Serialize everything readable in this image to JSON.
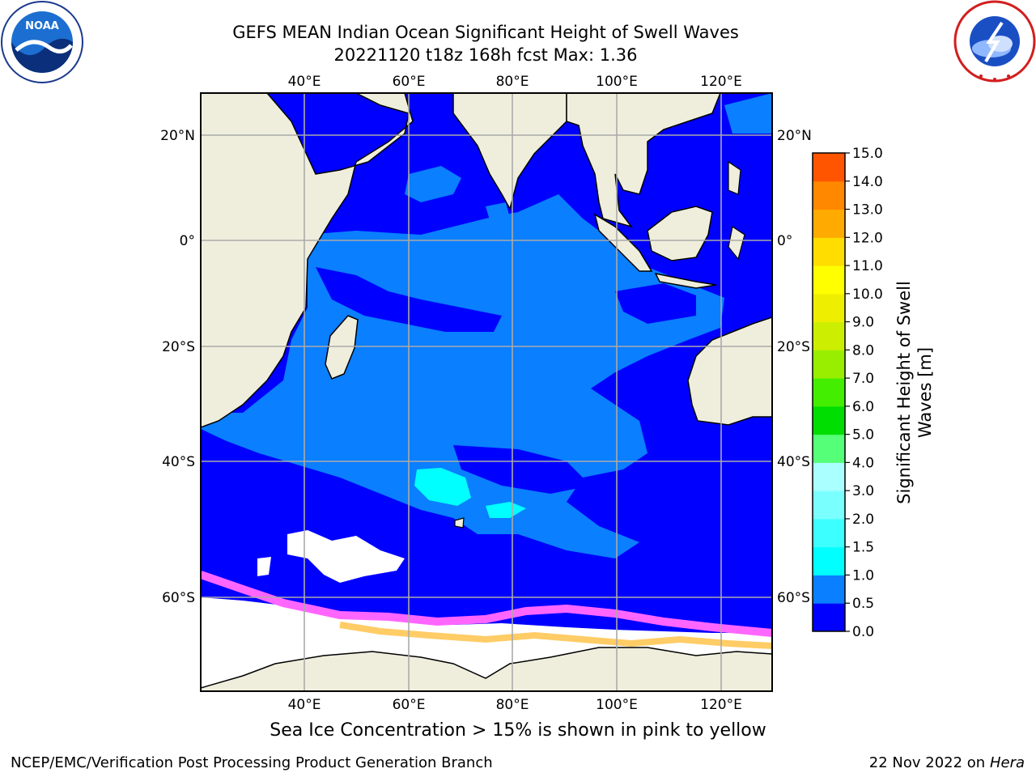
{
  "title_line1": "GEFS MEAN Indian Ocean Significant Height of Swell Waves",
  "title_line2": "20221120 t18z 168h fcst   Max: 1.36",
  "logos": {
    "left": "noaa-logo",
    "left_text": "NOAA",
    "right": "nws-logo"
  },
  "map": {
    "lon_ticks": [
      "40°E",
      "60°E",
      "80°E",
      "100°E",
      "120°E"
    ],
    "lat_ticks": [
      "20°N",
      "0°",
      "20°S",
      "40°S",
      "60°S"
    ],
    "colors": {
      "land": "#efeedd",
      "ocean_base": "#0000ff",
      "swell_05_10": "#0a7fff",
      "swell_10_15": "#00ffff",
      "ice": "#ffffff",
      "ice_edge_pink": "#ff66ff",
      "ice_edge_orange": "#ffcc66"
    }
  },
  "colorbar": {
    "title": "Significant Height of Swell Waves [m]",
    "levels": [
      "0.0",
      "0.5",
      "1.0",
      "1.5",
      "2.0",
      "3.0",
      "4.0",
      "5.0",
      "6.0",
      "7.0",
      "8.0",
      "9.0",
      "10.0",
      "11.0",
      "12.0",
      "13.0",
      "14.0",
      "15.0"
    ],
    "colors": [
      "#0000ff",
      "#0a7fff",
      "#00ffff",
      "#3cffff",
      "#7affff",
      "#aaffff",
      "#55ff77",
      "#00dd00",
      "#44ee00",
      "#99ee00",
      "#ccee00",
      "#eeee00",
      "#ffff00",
      "#ffdd00",
      "#ffaa00",
      "#ff8800",
      "#ff5500",
      "#ff0000"
    ]
  },
  "ice_note": "Sea Ice Concentration > 15% is shown in pink to yellow",
  "footer_left": "NCEP/EMC/Verification Post Processing Product Generation Branch",
  "footer_date": "22 Nov 2022 on",
  "footer_host": "Hera"
}
